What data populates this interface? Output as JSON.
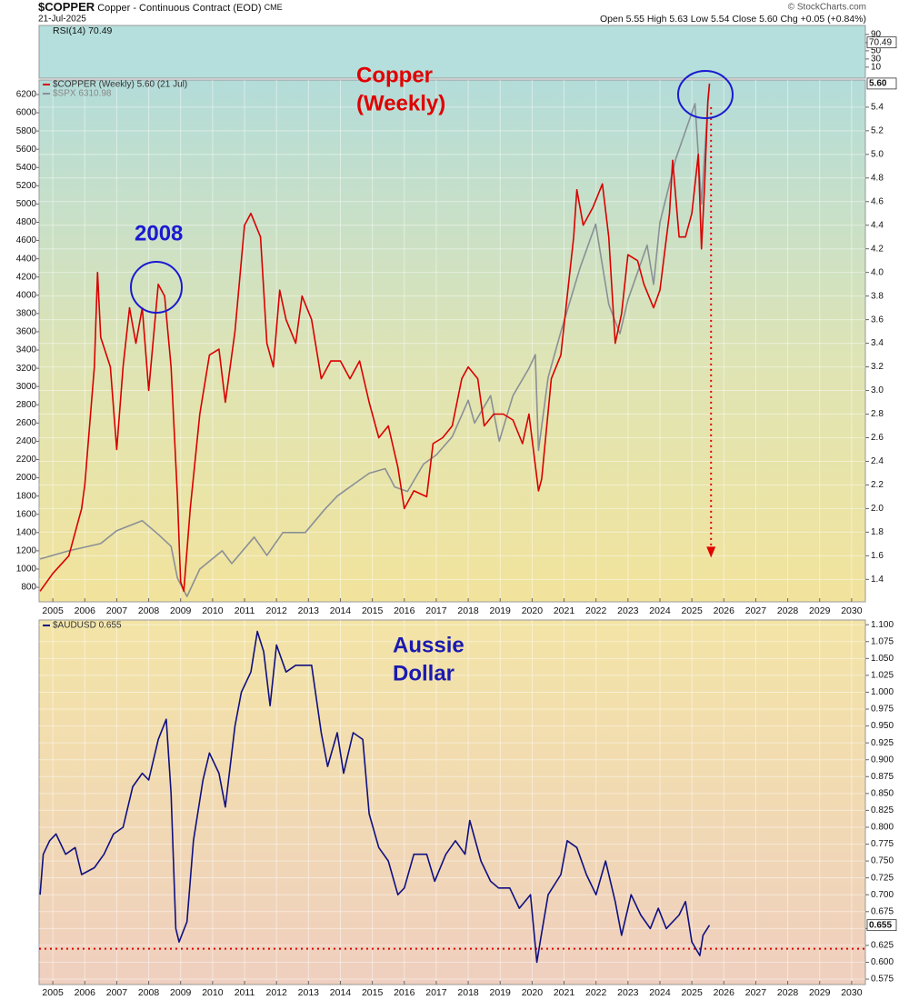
{
  "header": {
    "symbol": "$COPPER",
    "description": "Copper - Continuous Contract (EOD)",
    "exchange": "CME",
    "date": "21-Jul-2025",
    "quote": "Open 5.55  High 5.63  Low 5.54  Close 5.60  Chg +0.05 (+0.84%)",
    "source": "© StockCharts.com"
  },
  "chart_data": [
    {
      "type": "line",
      "legend": "RSI(14) 70.49",
      "last": 70.49,
      "ylim": [
        -17,
        112
      ],
      "yticks": [
        10,
        30,
        50,
        70,
        90
      ],
      "series": []
    },
    {
      "type": "line",
      "annotations": [
        "Copper",
        "(Weekly)",
        "2008"
      ],
      "xlim": [
        2004.57,
        2030.43
      ],
      "xticks": [
        2005,
        2006,
        2007,
        2008,
        2009,
        2010,
        2011,
        2012,
        2013,
        2014,
        2015,
        2016,
        2017,
        2018,
        2019,
        2020,
        2021,
        2022,
        2023,
        2024,
        2025,
        2026,
        2027,
        2028,
        2029,
        2030
      ],
      "ylim": [
        1.21,
        5.63
      ],
      "yticks": [
        1.4,
        1.6,
        1.8,
        {
          "value": 2,
          "label": "2.0"
        },
        2.2,
        2.4,
        2.6,
        2.8,
        {
          "value": 3,
          "label": "3.0"
        },
        3.2,
        3.4,
        3.6,
        3.8,
        {
          "value": 4,
          "label": "4.0"
        },
        4.2,
        4.4,
        4.6,
        4.8,
        {
          "value": 5,
          "label": "5.0"
        },
        5.2,
        5.4
      ],
      "y2lim": [
        641,
        6359
      ],
      "y2ticks": [
        800,
        1000,
        1200,
        1400,
        1600,
        1800,
        2000,
        2200,
        2400,
        2600,
        2800,
        3000,
        3200,
        3400,
        3600,
        3800,
        4000,
        4200,
        4400,
        4600,
        4800,
        5000,
        5200,
        5400,
        5600,
        5800,
        6000,
        6200
      ],
      "grid": true,
      "arrow": {
        "x": 2025.6,
        "from": 5.4,
        "to": 1.6,
        "color": "#e00000"
      },
      "series": [
        {
          "name": "$COPPER (Weekly) 5.60 (21 Jul)",
          "color": "#d90000",
          "last": {
            "value": 5.6,
            "label": "5.60"
          },
          "x": [
            2004.6,
            2005.0,
            2005.5,
            2005.9,
            2006.0,
            2006.3,
            2006.4,
            2006.5,
            2006.8,
            2007.0,
            2007.2,
            2007.4,
            2007.6,
            2007.8,
            2008.0,
            2008.3,
            2008.5,
            2008.7,
            2008.9,
            2009.0,
            2009.1,
            2009.3,
            2009.6,
            2009.9,
            2010.2,
            2010.4,
            2010.7,
            2011.0,
            2011.2,
            2011.5,
            2011.7,
            2011.9,
            2012.1,
            2012.3,
            2012.6,
            2012.8,
            2013.1,
            2013.4,
            2013.7,
            2014.0,
            2014.3,
            2014.6,
            2014.9,
            2015.2,
            2015.5,
            2015.8,
            2016.0,
            2016.3,
            2016.7,
            2016.9,
            2017.2,
            2017.5,
            2017.8,
            2018.0,
            2018.3,
            2018.5,
            2018.8,
            2019.1,
            2019.4,
            2019.7,
            2019.9,
            2020.2,
            2020.3,
            2020.6,
            2020.9,
            2021.0,
            2021.3,
            2021.4,
            2021.6,
            2021.9,
            2022.2,
            2022.4,
            2022.6,
            2022.8,
            2023.0,
            2023.3,
            2023.5,
            2023.8,
            2024.0,
            2024.3,
            2024.4,
            2024.6,
            2024.8,
            2025.0,
            2025.2,
            2025.3,
            2025.4,
            2025.5,
            2025.55
          ],
          "values": [
            1.3,
            1.45,
            1.6,
            2.0,
            2.2,
            3.2,
            4.0,
            3.45,
            3.2,
            2.5,
            3.2,
            3.7,
            3.4,
            3.7,
            3.0,
            3.9,
            3.8,
            3.2,
            2.1,
            1.38,
            1.3,
            2.0,
            2.8,
            3.3,
            3.35,
            2.9,
            3.5,
            4.4,
            4.5,
            4.3,
            3.4,
            3.2,
            3.85,
            3.6,
            3.4,
            3.8,
            3.6,
            3.1,
            3.25,
            3.25,
            3.1,
            3.25,
            2.9,
            2.6,
            2.7,
            2.35,
            2.0,
            2.15,
            2.1,
            2.55,
            2.6,
            2.7,
            3.1,
            3.2,
            3.1,
            2.7,
            2.8,
            2.8,
            2.75,
            2.55,
            2.8,
            2.15,
            2.25,
            3.1,
            3.3,
            3.55,
            4.3,
            4.7,
            4.4,
            4.55,
            4.75,
            4.3,
            3.4,
            3.65,
            4.15,
            4.1,
            3.9,
            3.7,
            3.85,
            4.5,
            4.95,
            4.3,
            4.3,
            4.5,
            5.0,
            4.2,
            4.75,
            5.45,
            5.6
          ]
        },
        {
          "name": "$SPX 6310.98",
          "color": "#8a9096",
          "axis": "y2",
          "x": [
            2004.6,
            2005.5,
            2006.5,
            2007.0,
            2007.8,
            2008.3,
            2008.7,
            2008.9,
            2009.2,
            2009.6,
            2010.3,
            2010.6,
            2011.3,
            2011.7,
            2012.2,
            2012.9,
            2013.5,
            2013.9,
            2014.5,
            2014.9,
            2015.4,
            2015.7,
            2016.1,
            2016.6,
            2017.0,
            2017.5,
            2018.0,
            2018.2,
            2018.7,
            2018.97,
            2019.4,
            2019.9,
            2020.1,
            2020.2,
            2020.5,
            2020.9,
            2021.5,
            2021.99,
            2022.4,
            2022.75,
            2023.0,
            2023.6,
            2023.8,
            2024.0,
            2024.5,
            2024.9,
            2025.1,
            2025.3,
            2025.5,
            2025.55
          ],
          "values": [
            1110,
            1200,
            1280,
            1420,
            1530,
            1380,
            1250,
            900,
            700,
            1000,
            1200,
            1060,
            1350,
            1150,
            1400,
            1400,
            1650,
            1800,
            1950,
            2050,
            2100,
            1900,
            1850,
            2150,
            2250,
            2450,
            2850,
            2600,
            2900,
            2400,
            2900,
            3200,
            3350,
            2300,
            3100,
            3600,
            4300,
            4780,
            3900,
            3580,
            3950,
            4550,
            4120,
            4800,
            5500,
            5900,
            6100,
            5000,
            6100,
            6310.98
          ]
        }
      ]
    },
    {
      "type": "line",
      "annotations": [
        "Aussie",
        "Dollar"
      ],
      "xlim": [
        2004.57,
        2030.43
      ],
      "xticks": [
        2005,
        2006,
        2007,
        2008,
        2009,
        2010,
        2011,
        2012,
        2013,
        2014,
        2015,
        2016,
        2017,
        2018,
        2019,
        2020,
        2021,
        2022,
        2023,
        2024,
        2025,
        2026,
        2027,
        2028,
        2029,
        2030
      ],
      "ylim": [
        0.567,
        1.107
      ],
      "yticks": [
        0.575,
        {
          "value": 0.6,
          "label": "0.600"
        },
        0.625,
        {
          "value": 0.65,
          "label": "0.650"
        },
        0.675,
        {
          "value": 0.7,
          "label": "0.700"
        },
        0.725,
        {
          "value": 0.75,
          "label": "0.750"
        },
        0.775,
        {
          "value": 0.8,
          "label": "0.800"
        },
        0.825,
        {
          "value": 0.85,
          "label": "0.850"
        },
        0.875,
        {
          "value": 0.9,
          "label": "0.900"
        },
        0.925,
        {
          "value": 0.95,
          "label": "0.950"
        },
        0.975,
        {
          "value": 1,
          "label": "1.000"
        },
        1.025,
        {
          "value": 1.05,
          "label": "1.050"
        },
        1.075,
        {
          "value": 1.1,
          "label": "1.100"
        }
      ],
      "grid": true,
      "reference_line": 0.62,
      "reference_color": "#e00000",
      "series": [
        {
          "name": "$AUDUSD 0.655",
          "color": "#101080",
          "last": 0.655,
          "x": [
            2004.6,
            2004.7,
            2004.9,
            2005.1,
            2005.4,
            2005.7,
            2005.9,
            2006.3,
            2006.6,
            2006.9,
            2007.2,
            2007.5,
            2007.8,
            2008.0,
            2008.3,
            2008.55,
            2008.7,
            2008.85,
            2008.95,
            2009.2,
            2009.4,
            2009.7,
            2009.9,
            2010.2,
            2010.4,
            2010.7,
            2010.9,
            2011.2,
            2011.4,
            2011.6,
            2011.8,
            2012.0,
            2012.3,
            2012.6,
            2012.9,
            2013.1,
            2013.4,
            2013.6,
            2013.9,
            2014.1,
            2014.4,
            2014.7,
            2014.9,
            2015.2,
            2015.5,
            2015.8,
            2016.0,
            2016.3,
            2016.7,
            2016.95,
            2017.3,
            2017.6,
            2017.9,
            2018.05,
            2018.4,
            2018.7,
            2018.95,
            2019.3,
            2019.6,
            2019.95,
            2020.15,
            2020.25,
            2020.5,
            2020.9,
            2021.1,
            2021.4,
            2021.7,
            2022.0,
            2022.3,
            2022.6,
            2022.8,
            2023.1,
            2023.4,
            2023.7,
            2023.95,
            2024.2,
            2024.6,
            2024.8,
            2025.0,
            2025.25,
            2025.35,
            2025.55
          ],
          "values": [
            0.7,
            0.76,
            0.78,
            0.79,
            0.76,
            0.77,
            0.73,
            0.74,
            0.76,
            0.79,
            0.8,
            0.86,
            0.88,
            0.87,
            0.93,
            0.96,
            0.85,
            0.65,
            0.63,
            0.66,
            0.78,
            0.87,
            0.91,
            0.88,
            0.83,
            0.95,
            1.0,
            1.03,
            1.09,
            1.06,
            0.98,
            1.07,
            1.03,
            1.04,
            1.04,
            1.04,
            0.94,
            0.89,
            0.94,
            0.88,
            0.94,
            0.93,
            0.82,
            0.77,
            0.75,
            0.7,
            0.71,
            0.76,
            0.76,
            0.72,
            0.76,
            0.78,
            0.76,
            0.81,
            0.75,
            0.72,
            0.71,
            0.71,
            0.68,
            0.7,
            0.6,
            0.63,
            0.7,
            0.73,
            0.78,
            0.77,
            0.73,
            0.7,
            0.75,
            0.69,
            0.64,
            0.7,
            0.67,
            0.65,
            0.68,
            0.65,
            0.67,
            0.69,
            0.63,
            0.61,
            0.64,
            0.655
          ]
        }
      ]
    }
  ]
}
